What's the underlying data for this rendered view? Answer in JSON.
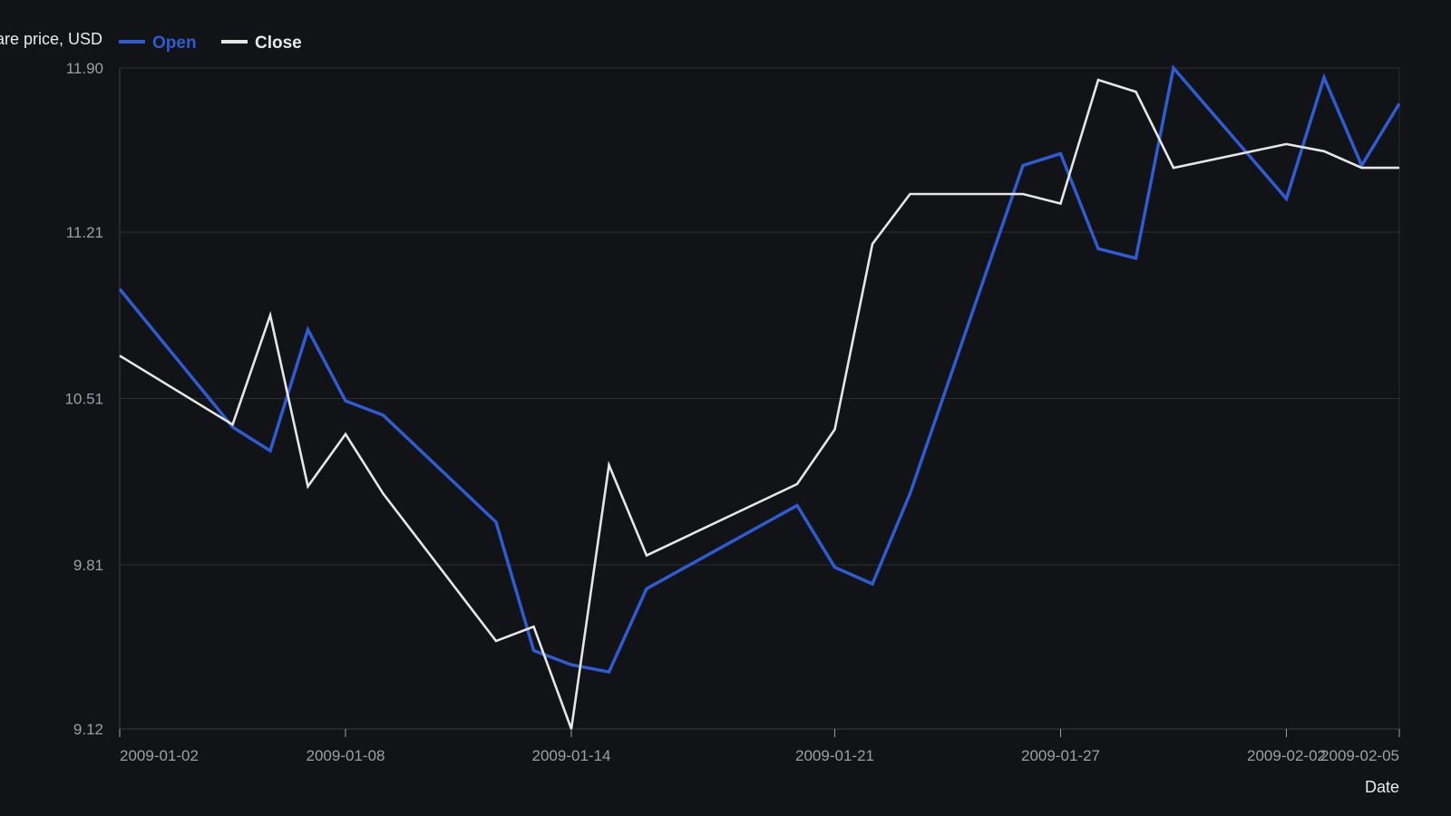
{
  "chart_data": {
    "type": "line",
    "title": "",
    "ylabel": "Share price, USD",
    "xlabel": "Date",
    "legend_position": "top-left",
    "grid": true,
    "ylim": [
      9.12,
      11.9
    ],
    "yticks": [
      "9.12",
      "9.81",
      "10.51",
      "11.21",
      "11.90"
    ],
    "xticks": [
      "2009-01-02",
      "2009-01-08",
      "2009-01-14",
      "2009-01-21",
      "2009-01-27",
      "2009-02-02",
      "2009-02-05"
    ],
    "x": [
      "2009-01-02",
      "2009-01-05",
      "2009-01-06",
      "2009-01-07",
      "2009-01-08",
      "2009-01-09",
      "2009-01-12",
      "2009-01-13",
      "2009-01-14",
      "2009-01-15",
      "2009-01-16",
      "2009-01-20",
      "2009-01-21",
      "2009-01-22",
      "2009-01-23",
      "2009-01-26",
      "2009-01-27",
      "2009-01-28",
      "2009-01-29",
      "2009-01-30",
      "2009-02-02",
      "2009-02-03",
      "2009-02-04",
      "2009-02-05"
    ],
    "series": [
      {
        "name": "Open",
        "color": "#2f5bd3",
        "values": [
          10.97,
          10.39,
          10.29,
          10.8,
          10.5,
          10.44,
          9.99,
          9.45,
          9.39,
          9.36,
          9.71,
          10.06,
          9.8,
          9.73,
          10.11,
          11.49,
          11.54,
          11.14,
          11.1,
          11.9,
          11.35,
          11.86,
          11.49,
          11.75
        ]
      },
      {
        "name": "Close",
        "color": "#e6e6e6",
        "values": [
          10.69,
          10.4,
          10.86,
          10.14,
          10.36,
          10.11,
          9.49,
          9.55,
          9.12,
          10.23,
          9.85,
          10.15,
          10.38,
          11.16,
          11.37,
          11.37,
          11.33,
          11.85,
          11.8,
          11.48,
          11.58,
          11.55,
          11.48,
          11.48
        ]
      }
    ]
  }
}
